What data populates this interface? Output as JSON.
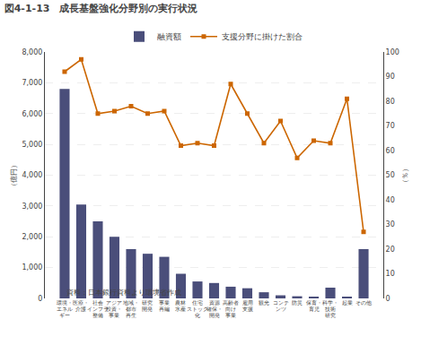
{
  "chart_data": {
    "type": "bar",
    "title": "図4-1-13　成長基盤強化分野別の実行状況",
    "source": "資料：日本銀行資料より環境省作成",
    "categories": [
      "環境・\nエネル\nギー",
      "医療・\n介護",
      "社会\nインフラ\n整備",
      "アジア\n投資・\n事業",
      "地域・\n都市\n再生",
      "研究\n開発",
      "事業\n再編",
      "農林\n水産",
      "住宅\nストック\n化",
      "資源\n確保・\n開発",
      "高齢者\n向け\n事業",
      "雇用\n支援",
      "観光",
      "コンテ\nンツ",
      "防災",
      "保育・\n育児",
      "科学・\n技術\n研究",
      "起業",
      "その他"
    ],
    "series": [
      {
        "name": "融資額",
        "type": "bar",
        "color": "#4a4e7a",
        "values": [
          6800,
          3050,
          2500,
          2000,
          1600,
          1450,
          1350,
          800,
          550,
          500,
          380,
          330,
          200,
          100,
          70,
          50,
          350,
          50,
          1600
        ]
      },
      {
        "name": "支援分野に掛けた割合",
        "type": "line",
        "color": "#cc6600",
        "marker": "square",
        "axis": "y2",
        "values": [
          92,
          97,
          75,
          76,
          78,
          75,
          76,
          62,
          63,
          62,
          87,
          75,
          63,
          72,
          57,
          64,
          63,
          81,
          27
        ]
      }
    ],
    "ylabel": "（億円）",
    "y2label": "（％）",
    "ylim": [
      0,
      8000
    ],
    "yticks": [
      0,
      {
        "value": 1000,
        "label": "1,000"
      },
      {
        "value": 2000,
        "label": "2,000"
      },
      {
        "value": 3000,
        "label": "3,000"
      },
      {
        "value": 4000,
        "label": "4,000"
      },
      {
        "value": 5000,
        "label": "5,000"
      },
      {
        "value": 6000,
        "label": "6,000"
      },
      {
        "value": 7000,
        "label": "7,000"
      },
      {
        "value": 8000,
        "label": "8,000"
      }
    ],
    "y2lim": [
      0,
      100
    ],
    "y2ticks": [
      0,
      10,
      20,
      30,
      40,
      50,
      60,
      70,
      80,
      90,
      100
    ],
    "grid": true,
    "legend": "top"
  }
}
